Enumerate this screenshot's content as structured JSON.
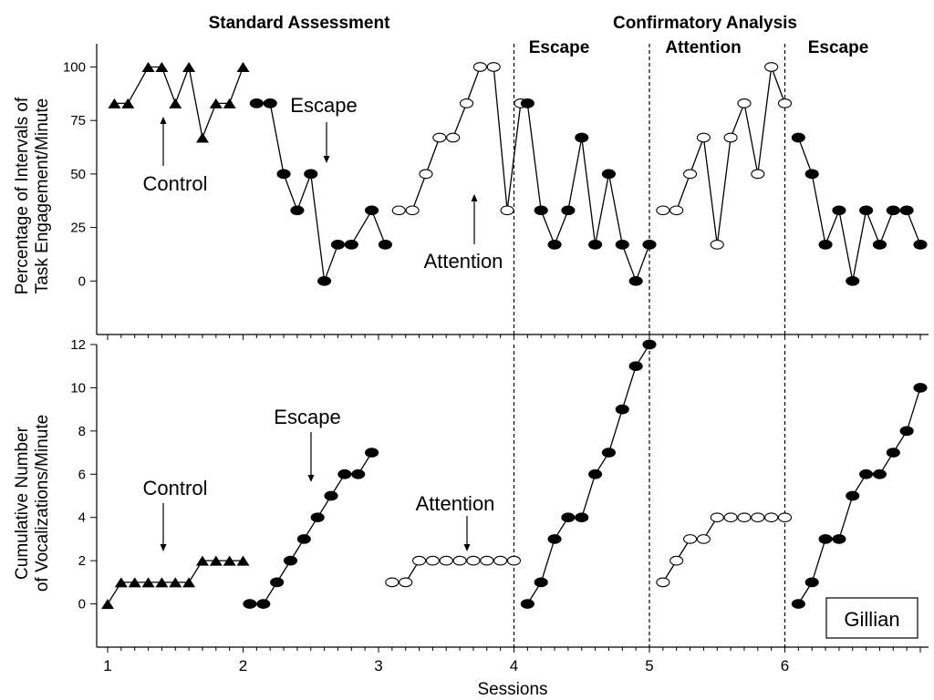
{
  "chart_data": [
    {
      "type": "line",
      "ylabel": [
        "Percentage of Intervals of",
        "Task Engagement/Minute"
      ],
      "ylim": [
        -25,
        110
      ],
      "yticks": [
        0,
        25,
        50,
        75,
        100
      ],
      "xlim": [
        1,
        7
      ],
      "headers": [
        "Standard Assessment",
        "Confirmatory Analysis"
      ],
      "phase_labels": [
        "Escape",
        "Attention",
        "Escape"
      ],
      "phase_lines_x": [
        4,
        5,
        6
      ],
      "annotations": [
        "Control",
        "Escape",
        "Attention"
      ],
      "series": [
        {
          "name": "Control",
          "marker": "triangle",
          "x": [
            1.05,
            1.15,
            1.3,
            1.4,
            1.5,
            1.6,
            1.7,
            1.8,
            1.9,
            2.0
          ],
          "y": [
            83,
            83,
            100,
            100,
            83,
            100,
            67,
            83,
            83,
            100
          ]
        },
        {
          "name": "Escape",
          "marker": "filled-circle",
          "x": [
            2.1,
            2.2,
            2.3,
            2.4,
            2.5,
            2.6,
            2.7,
            2.8,
            2.95,
            3.05
          ],
          "y": [
            83,
            83,
            50,
            33,
            50,
            0,
            17,
            17,
            33,
            17
          ]
        },
        {
          "name": "Attention",
          "marker": "open-circle",
          "x": [
            3.15,
            3.25,
            3.35,
            3.45,
            3.55,
            3.65,
            3.75,
            3.85,
            3.95,
            4.05
          ],
          "y": [
            33,
            33,
            50,
            67,
            67,
            83,
            100,
            100,
            33,
            83
          ]
        },
        {
          "name": "Escape",
          "marker": "filled-circle",
          "x": [
            4.1,
            4.2,
            4.3,
            4.4,
            4.5,
            4.6,
            4.7,
            4.8,
            4.9,
            5.0
          ],
          "y": [
            83,
            33,
            17,
            33,
            67,
            17,
            50,
            17,
            0,
            17
          ]
        },
        {
          "name": "Attention",
          "marker": "open-circle",
          "x": [
            5.1,
            5.2,
            5.3,
            5.4,
            5.5,
            5.6,
            5.7,
            5.8,
            5.9,
            6.0
          ],
          "y": [
            33,
            33,
            50,
            67,
            17,
            67,
            83,
            50,
            100,
            83
          ]
        },
        {
          "name": "Escape",
          "marker": "filled-circle",
          "x": [
            6.1,
            6.2,
            6.3,
            6.4,
            6.5,
            6.6,
            6.7,
            6.8,
            6.9,
            7.0
          ],
          "y": [
            67,
            50,
            17,
            33,
            0,
            33,
            17,
            33,
            33,
            17
          ]
        }
      ]
    },
    {
      "type": "line",
      "xlabel": "Sessions",
      "ylabel": [
        "Cumulative Number",
        "of Vocalizations/Minute"
      ],
      "ylim": [
        -2,
        12
      ],
      "yticks": [
        0,
        2,
        4,
        6,
        8,
        10,
        12
      ],
      "xlim": [
        1,
        7
      ],
      "xticks": [
        1,
        2,
        3,
        4,
        5,
        6
      ],
      "phase_lines_x": [
        4,
        5,
        6
      ],
      "annotations": [
        "Control",
        "Escape",
        "Attention"
      ],
      "box_label": "Gillian",
      "series": [
        {
          "name": "Control",
          "marker": "triangle",
          "x": [
            1.0,
            1.1,
            1.2,
            1.3,
            1.4,
            1.5,
            1.6,
            1.7,
            1.8,
            1.9,
            2.0
          ],
          "y": [
            0,
            1,
            1,
            1,
            1,
            1,
            1,
            2,
            2,
            2,
            2
          ]
        },
        {
          "name": "Escape",
          "marker": "filled-circle",
          "x": [
            2.05,
            2.15,
            2.25,
            2.35,
            2.45,
            2.55,
            2.65,
            2.75,
            2.85,
            2.95
          ],
          "y": [
            0,
            0,
            1,
            2,
            3,
            4,
            5,
            6,
            6,
            7
          ]
        },
        {
          "name": "Attention",
          "marker": "open-circle",
          "x": [
            3.1,
            3.2,
            3.3,
            3.4,
            3.5,
            3.6,
            3.7,
            3.8,
            3.9,
            4.0
          ],
          "y": [
            1,
            1,
            2,
            2,
            2,
            2,
            2,
            2,
            2,
            2
          ]
        },
        {
          "name": "Escape",
          "marker": "filled-circle",
          "x": [
            4.1,
            4.2,
            4.3,
            4.4,
            4.5,
            4.6,
            4.7,
            4.8,
            4.9,
            5.0
          ],
          "y": [
            0,
            1,
            3,
            4,
            4,
            6,
            7,
            9,
            11,
            12
          ]
        },
        {
          "name": "Attention",
          "marker": "open-circle",
          "x": [
            5.1,
            5.2,
            5.3,
            5.4,
            5.5,
            5.6,
            5.7,
            5.8,
            5.9,
            6.0
          ],
          "y": [
            1,
            2,
            3,
            3,
            4,
            4,
            4,
            4,
            4,
            4
          ]
        },
        {
          "name": "Escape",
          "marker": "filled-circle",
          "x": [
            6.1,
            6.2,
            6.3,
            6.4,
            6.5,
            6.6,
            6.7,
            6.8,
            6.9,
            7.0
          ],
          "y": [
            0,
            1,
            3,
            3,
            5,
            6,
            6,
            7,
            8,
            10
          ]
        }
      ]
    }
  ]
}
